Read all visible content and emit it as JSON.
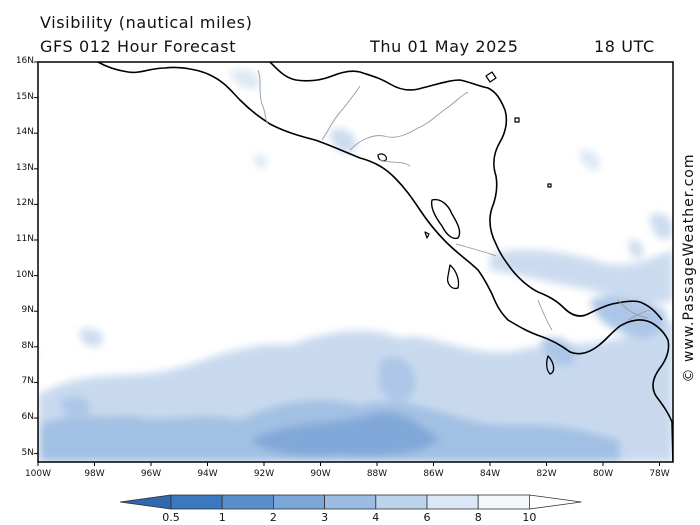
{
  "header": {
    "title": "Visibility (nautical miles)",
    "subtitle": "GFS 012 Hour Forecast",
    "date": "Thu 01 May 2025",
    "time": "18 UTC"
  },
  "credit": "© www.PassageWeather.com",
  "lat_labels": [
    "16N",
    "15N",
    "14N",
    "13N",
    "12N",
    "11N",
    "10N",
    "9N",
    "8N",
    "7N",
    "6N",
    "5N"
  ],
  "lon_labels": [
    "100W",
    "98W",
    "96W",
    "94W",
    "92W",
    "90W",
    "88W",
    "86W",
    "84W",
    "82W",
    "80W",
    "78W"
  ],
  "colorbar": {
    "labels": [
      "0.5",
      "1",
      "2",
      "3",
      "4",
      "6",
      "8",
      "10"
    ],
    "colors": [
      "#3a78bf",
      "#5a8fcc",
      "#7aa6d8",
      "#9bbde2",
      "#bcd3ec",
      "#dbe7f5",
      "#f4f8fc"
    ]
  },
  "colors": {
    "land_outline": "#000000",
    "border": "#9a9a9a"
  }
}
